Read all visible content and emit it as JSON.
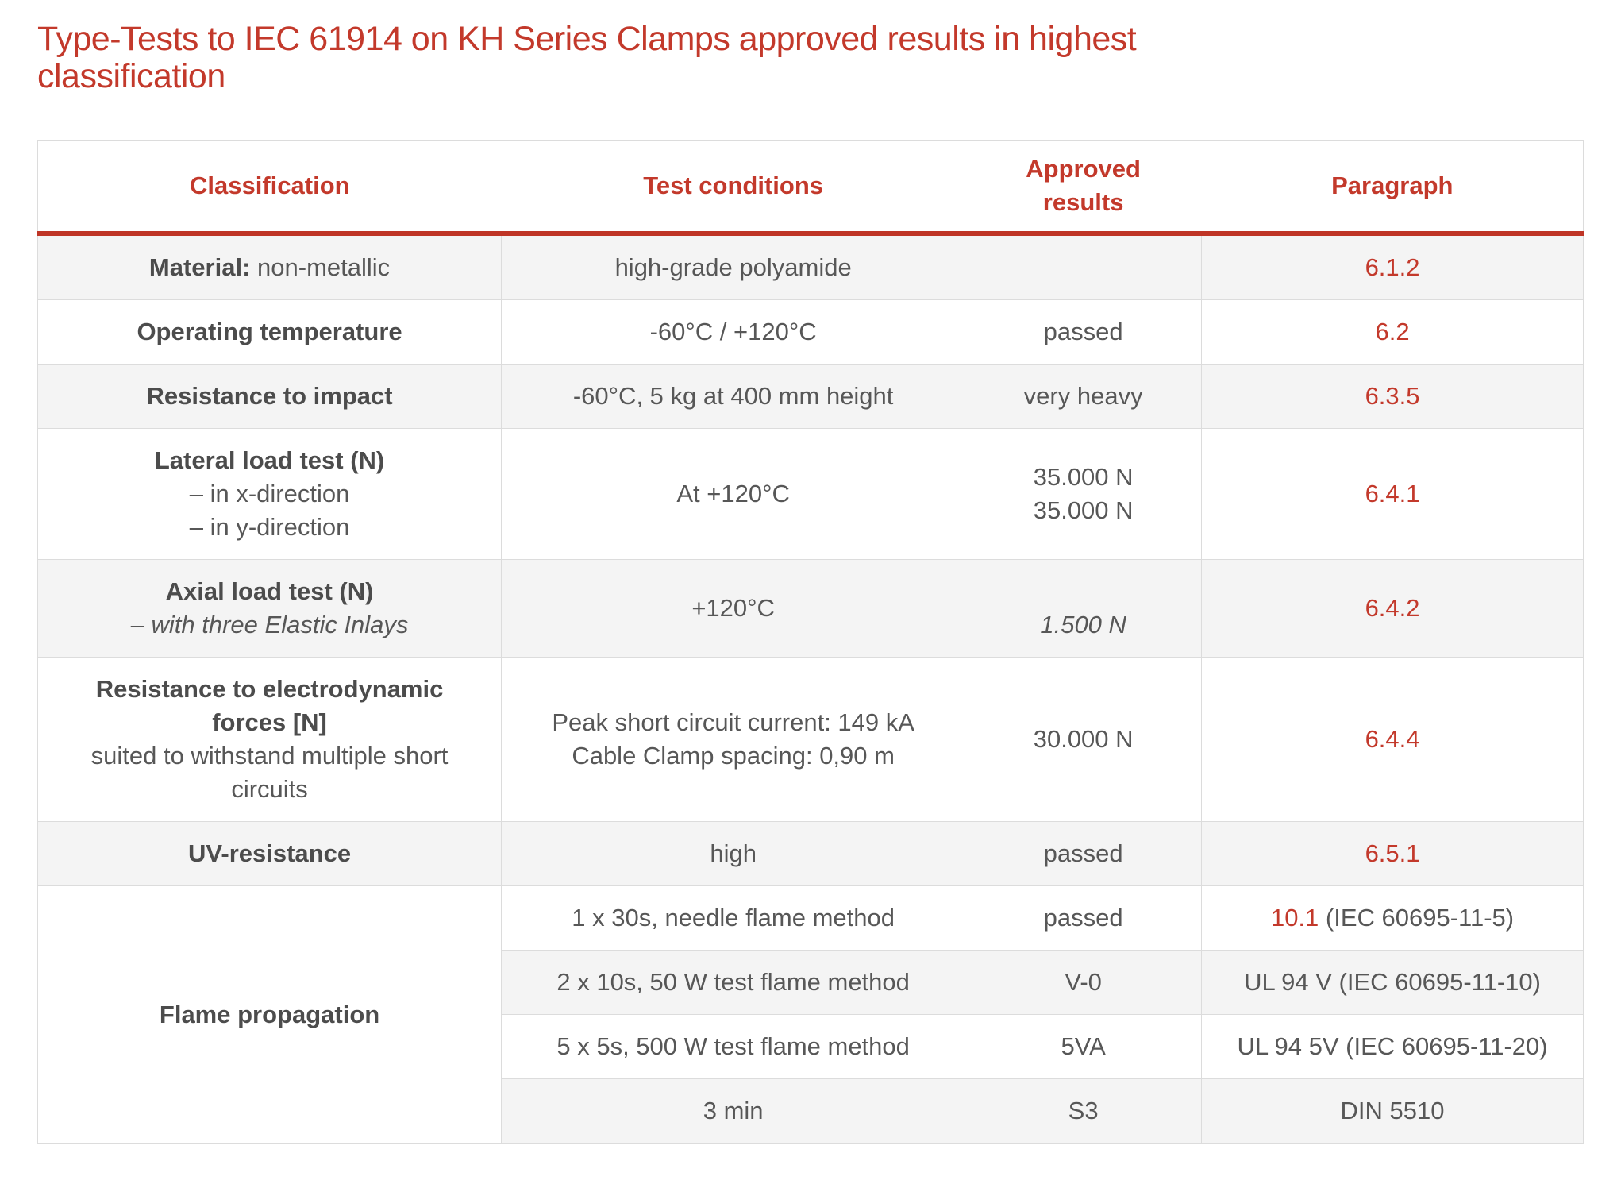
{
  "page": {
    "title": "Type-Tests to IEC 61914 on KH Series Clamps approved results in highest\nclassification"
  },
  "colors": {
    "accent_red": "#c3392b",
    "header_rule_red": "#bf3526",
    "body_text": "#575757",
    "row_shade": "#f4f4f4",
    "grid_border": "#dcdcdc"
  },
  "table": {
    "columns": [
      "Classification",
      "Test conditions",
      "Approved\nresults",
      "Paragraph"
    ],
    "rows": [
      {
        "shade": true,
        "classification": {
          "rowspan": 1,
          "lines": [
            [
              {
                "t": "Material:",
                "b": true
              },
              {
                "t": " non-metallic"
              }
            ]
          ]
        },
        "conditions": [
          [
            {
              "t": "high-grade polyamide"
            }
          ]
        ],
        "results": [],
        "paragraph": [
          [
            {
              "t": "6.1.2",
              "red": true
            }
          ]
        ]
      },
      {
        "shade": false,
        "classification": {
          "rowspan": 1,
          "lines": [
            [
              {
                "t": "Operating temperature",
                "b": true
              }
            ]
          ]
        },
        "conditions": [
          [
            {
              "t": "-60°C / +120°C"
            }
          ]
        ],
        "results": [
          [
            {
              "t": "passed"
            }
          ]
        ],
        "paragraph": [
          [
            {
              "t": "6.2",
              "red": true
            }
          ]
        ]
      },
      {
        "shade": true,
        "classification": {
          "rowspan": 1,
          "lines": [
            [
              {
                "t": "Resistance to impact",
                "b": true
              }
            ]
          ]
        },
        "conditions": [
          [
            {
              "t": "-60°C, 5 kg at 400 mm height"
            }
          ]
        ],
        "results": [
          [
            {
              "t": "very heavy"
            }
          ]
        ],
        "paragraph": [
          [
            {
              "t": "6.3.5",
              "red": true
            }
          ]
        ]
      },
      {
        "shade": false,
        "classification": {
          "rowspan": 1,
          "lines": [
            [
              {
                "t": "Lateral load test (N)",
                "b": true
              }
            ],
            [
              {
                "t": "– in x-direction"
              }
            ],
            [
              {
                "t": "– in y-direction"
              }
            ]
          ]
        },
        "conditions": [
          [
            {
              "t": "At +120°C"
            }
          ]
        ],
        "results": [
          [
            {
              "t": "35.000 N"
            }
          ],
          [
            {
              "t": "35.000 N"
            }
          ]
        ],
        "paragraph": [
          [
            {
              "t": "6.4.1",
              "red": true
            }
          ]
        ]
      },
      {
        "shade": true,
        "classification": {
          "rowspan": 1,
          "lines": [
            [
              {
                "t": "Axial load test (N)",
                "b": true
              }
            ],
            [
              {
                "t": "– with three Elastic Inlays",
                "i": true
              }
            ]
          ]
        },
        "conditions": [
          [
            {
              "t": "+120°C"
            }
          ]
        ],
        "results": [
          [
            {
              "t": " "
            }
          ],
          [
            {
              "t": "1.500 N",
              "i": true
            }
          ]
        ],
        "paragraph": [
          [
            {
              "t": "6.4.2",
              "red": true
            }
          ]
        ]
      },
      {
        "shade": false,
        "classification": {
          "rowspan": 1,
          "lines": [
            [
              {
                "t": "Resistance to electrodynamic",
                "b": true
              }
            ],
            [
              {
                "t": "forces [N]",
                "b": true
              }
            ],
            [
              {
                "t": "suited to withstand multiple short"
              }
            ],
            [
              {
                "t": "circuits"
              }
            ]
          ]
        },
        "conditions": [
          [
            {
              "t": "Peak short circuit current: 149 kA"
            }
          ],
          [
            {
              "t": "Cable Clamp spacing: 0,90 m"
            }
          ]
        ],
        "results": [
          [
            {
              "t": "30.000 N"
            }
          ]
        ],
        "paragraph": [
          [
            {
              "t": "6.4.4",
              "red": true
            }
          ]
        ]
      },
      {
        "shade": true,
        "classification": {
          "rowspan": 1,
          "lines": [
            [
              {
                "t": "UV-resistance",
                "b": true
              }
            ]
          ]
        },
        "conditions": [
          [
            {
              "t": "high"
            }
          ]
        ],
        "results": [
          [
            {
              "t": "passed"
            }
          ]
        ],
        "paragraph": [
          [
            {
              "t": "6.5.1",
              "red": true
            }
          ]
        ]
      },
      {
        "shade": false,
        "classification": {
          "rowspan": 4,
          "lines": [
            [
              {
                "t": "Flame propagation",
                "b": true
              }
            ]
          ]
        },
        "conditions": [
          [
            {
              "t": "1 x 30s, needle flame method"
            }
          ]
        ],
        "results": [
          [
            {
              "t": "passed"
            }
          ]
        ],
        "paragraph": [
          [
            {
              "t": "10.1",
              "red": true
            },
            {
              "t": " (IEC 60695-11-5)"
            }
          ]
        ]
      },
      {
        "shade": true,
        "conditions": [
          [
            {
              "t": "2 x 10s, 50 W test flame method"
            }
          ]
        ],
        "results": [
          [
            {
              "t": "V-0"
            }
          ]
        ],
        "paragraph": [
          [
            {
              "t": "UL 94 V (IEC 60695-11-10)"
            }
          ]
        ]
      },
      {
        "shade": false,
        "conditions": [
          [
            {
              "t": "5 x 5s, 500 W test flame method"
            }
          ]
        ],
        "results": [
          [
            {
              "t": "5VA"
            }
          ]
        ],
        "paragraph": [
          [
            {
              "t": "UL 94 5V (IEC 60695-11-20)"
            }
          ]
        ]
      },
      {
        "shade": true,
        "conditions": [
          [
            {
              "t": "3 min"
            }
          ]
        ],
        "results": [
          [
            {
              "t": "S3"
            }
          ]
        ],
        "paragraph": [
          [
            {
              "t": "DIN 5510"
            }
          ]
        ]
      }
    ]
  }
}
